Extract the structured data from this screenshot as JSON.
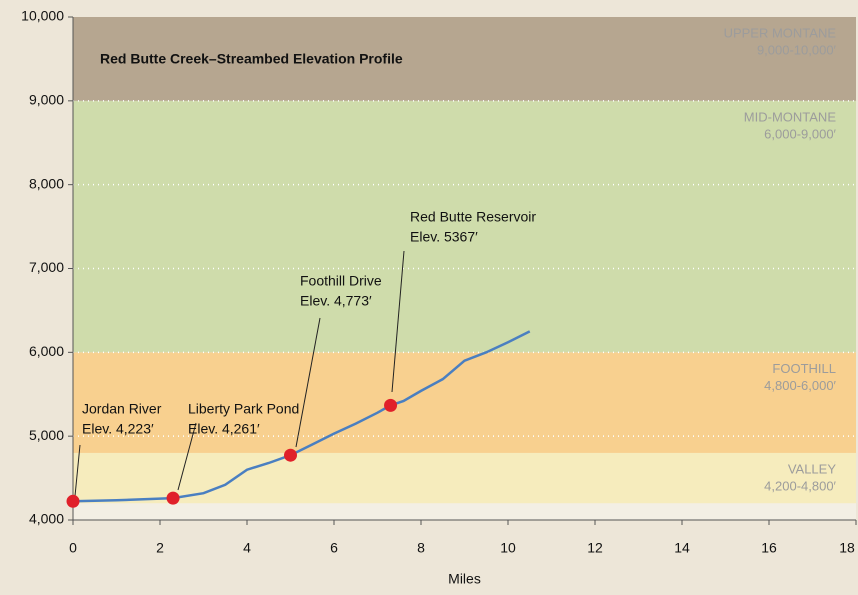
{
  "chart_data": {
    "type": "line",
    "title": "Red Butte Creek–Streambed Elevation Profile",
    "x_label": "Miles",
    "xlim": [
      0,
      18
    ],
    "xticks": [
      0,
      2,
      4,
      6,
      8,
      10,
      12,
      14,
      16,
      18
    ],
    "ylim": [
      4000,
      10000
    ],
    "yticks": [
      {
        "value": 4000,
        "label": "4,000"
      },
      {
        "value": 5000,
        "label": "5,000"
      },
      {
        "value": 6000,
        "label": "6,000"
      },
      {
        "value": 7000,
        "label": "7,000"
      },
      {
        "value": 8000,
        "label": "8,000"
      },
      {
        "value": 9000,
        "label": "9,000"
      },
      {
        "value": 10000,
        "label": "10,000"
      }
    ],
    "grid": true,
    "zones": [
      {
        "name": "VALLEY",
        "range": "4,200-4,800′",
        "ylim": [
          4200,
          4800
        ],
        "color": "#f6ecbd"
      },
      {
        "name": "FOOTHILL",
        "range": "4,800-6,000′",
        "ylim": [
          4800,
          6000
        ],
        "color": "#f8d08f"
      },
      {
        "name": "MID-MONTANE",
        "range": "6,000-9,000′",
        "ylim": [
          6000,
          9000
        ],
        "color": "#cfdcab"
      },
      {
        "name": "UPPER MONTANE",
        "range": "9,000-10,000′",
        "ylim": [
          9000,
          10000
        ],
        "color": "#b6a690"
      }
    ],
    "series": [
      {
        "name": "Streambed",
        "color": "#4a7fc1",
        "x": [
          0,
          1,
          2,
          2.3,
          3,
          3.5,
          4,
          4.5,
          5,
          5.5,
          6,
          6.5,
          7,
          7.3,
          7.6,
          8,
          8.5,
          9,
          9.5,
          10,
          10.5
        ],
        "values": [
          4223,
          4235,
          4255,
          4261,
          4320,
          4420,
          4600,
          4680,
          4773,
          4900,
          5030,
          5150,
          5280,
          5367,
          5420,
          5540,
          5680,
          5900,
          6000,
          6120,
          6250
        ]
      }
    ],
    "points": [
      {
        "name": "Jordan River",
        "label": "Elev. 4,223′",
        "x": 0,
        "y": 4223
      },
      {
        "name": "Liberty Park Pond",
        "label": "Elev. 4,261′",
        "x": 2.3,
        "y": 4261
      },
      {
        "name": "Foothill Drive",
        "label": "Elev. 4,773′",
        "x": 5,
        "y": 4773
      },
      {
        "name": "Red Butte Reservoir",
        "label": "Elev. 5367′",
        "x": 7.3,
        "y": 5367
      }
    ],
    "point_color": "#e0202a"
  }
}
